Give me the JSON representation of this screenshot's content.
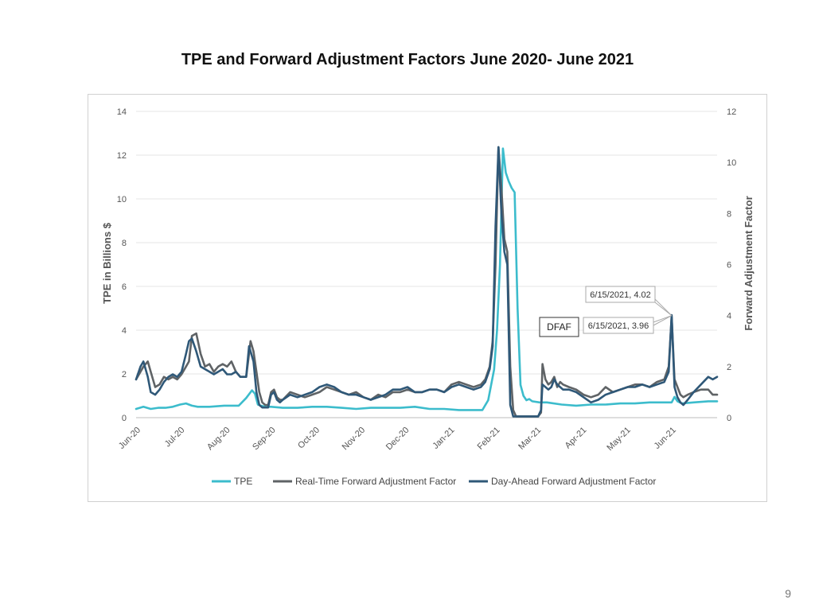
{
  "slide": {
    "title": "TPE and Forward Adjustment Factors June 2020- June 2021",
    "page_number": "9"
  },
  "chart_data": {
    "type": "line",
    "title": "",
    "xlabel": "",
    "ylabel": "TPE in Billions $",
    "y2label": "Forward Adjustment Factor",
    "ylim": [
      0,
      14
    ],
    "y2lim": [
      0,
      12
    ],
    "yticks": [
      0,
      2,
      4,
      6,
      8,
      10,
      12,
      14
    ],
    "y2ticks": [
      0,
      2,
      4,
      6,
      8,
      10,
      12
    ],
    "x_range": [
      0,
      396
    ],
    "xtick_positions": [
      0,
      30,
      61,
      92,
      122,
      153,
      183,
      214,
      245,
      273,
      304,
      334,
      365
    ],
    "xtick_labels": [
      "Jun-20",
      "Jul-20",
      "Aug-20",
      "Sep-20",
      "Oct-20",
      "Nov-20",
      "Dec-20",
      "Jan-21",
      "Feb-21",
      "Mar-21",
      "Apr-21",
      "May-21",
      "Jun-21"
    ],
    "grid": true,
    "legend_position": "bottom",
    "colors": {
      "TPE": "#3cbccc",
      "RTFAF": "#5f6366",
      "DAFAF": "#2f5878"
    },
    "series": [
      {
        "name": "TPE",
        "axis": "left",
        "x": [
          0,
          5,
          10,
          15,
          20,
          25,
          30,
          34,
          38,
          42,
          50,
          60,
          70,
          75,
          79,
          81,
          83,
          85,
          88,
          92,
          100,
          110,
          120,
          130,
          140,
          150,
          160,
          170,
          180,
          190,
          200,
          210,
          220,
          230,
          236,
          240,
          242,
          244,
          246,
          248,
          250,
          252,
          254,
          256,
          258,
          260,
          262,
          264,
          266,
          268,
          270,
          275,
          280,
          290,
          300,
          310,
          320,
          330,
          340,
          350,
          360,
          365,
          367,
          369,
          372,
          380,
          390,
          396
        ],
        "values": [
          0.4,
          0.5,
          0.4,
          0.45,
          0.45,
          0.5,
          0.6,
          0.65,
          0.55,
          0.5,
          0.5,
          0.55,
          0.55,
          0.9,
          1.25,
          1.1,
          0.6,
          0.55,
          0.5,
          0.5,
          0.45,
          0.45,
          0.5,
          0.5,
          0.45,
          0.4,
          0.45,
          0.45,
          0.45,
          0.5,
          0.4,
          0.4,
          0.35,
          0.35,
          0.35,
          0.8,
          1.5,
          2.2,
          4,
          7,
          12.3,
          11.2,
          10.8,
          10.5,
          10.3,
          5,
          1.5,
          1,
          0.8,
          0.85,
          0.75,
          0.7,
          0.7,
          0.6,
          0.55,
          0.6,
          0.6,
          0.65,
          0.65,
          0.7,
          0.7,
          0.7,
          0.95,
          0.75,
          0.65,
          0.7,
          0.75,
          0.75
        ]
      },
      {
        "name": "Real-Time Forward Adjustment Factor",
        "axis": "right",
        "x": [
          0,
          3,
          5,
          8,
          10,
          13,
          16,
          19,
          22,
          25,
          28,
          31,
          34,
          36,
          38,
          41,
          44,
          47,
          50,
          53,
          56,
          59,
          62,
          65,
          68,
          71,
          75,
          77,
          78,
          80,
          82,
          84,
          86,
          88,
          90,
          92,
          94,
          96,
          98,
          100,
          105,
          110,
          115,
          120,
          125,
          130,
          135,
          140,
          145,
          150,
          155,
          160,
          165,
          170,
          175,
          180,
          185,
          190,
          195,
          200,
          205,
          210,
          215,
          220,
          225,
          230,
          235,
          238,
          241,
          243,
          245,
          247,
          249,
          251,
          253,
          255,
          257,
          259,
          260,
          262,
          264,
          266,
          268,
          270,
          272,
          274,
          276,
          277,
          279,
          281,
          283,
          285,
          287,
          289,
          291,
          295,
          300,
          305,
          310,
          315,
          320,
          325,
          330,
          335,
          340,
          345,
          350,
          355,
          360,
          363,
          365,
          367,
          369,
          371,
          373,
          376,
          380,
          385,
          390,
          393,
          396
        ],
        "values": [
          1.5,
          1.8,
          2.0,
          2.2,
          1.8,
          1.2,
          1.3,
          1.6,
          1.5,
          1.6,
          1.5,
          1.7,
          2.0,
          2.2,
          3.2,
          3.3,
          2.5,
          2.0,
          2.1,
          1.8,
          2.0,
          2.1,
          2.0,
          2.2,
          1.8,
          1.6,
          1.6,
          2.5,
          3.0,
          2.6,
          1.8,
          1.0,
          0.6,
          0.5,
          0.5,
          1.0,
          1.1,
          0.8,
          0.7,
          0.7,
          1.0,
          0.9,
          0.8,
          0.9,
          1.0,
          1.2,
          1.1,
          1.0,
          0.9,
          1.0,
          0.8,
          0.7,
          0.9,
          0.8,
          1.0,
          1.0,
          1.1,
          1.0,
          1.0,
          1.1,
          1.1,
          1.0,
          1.3,
          1.4,
          1.3,
          1.2,
          1.3,
          1.5,
          2.0,
          3.0,
          6.0,
          10.6,
          9.0,
          7.0,
          6.5,
          2.0,
          0.3,
          0.05,
          0.05,
          0.05,
          0.05,
          0.05,
          0.05,
          0.05,
          0.05,
          0.05,
          0.2,
          2.1,
          1.5,
          1.3,
          1.4,
          1.6,
          1.2,
          1.4,
          1.3,
          1.2,
          1.1,
          0.9,
          0.8,
          0.9,
          1.2,
          1.0,
          1.1,
          1.2,
          1.3,
          1.3,
          1.2,
          1.4,
          1.5,
          2.0,
          3.96,
          1.5,
          1.2,
          0.9,
          0.8,
          0.9,
          1.0,
          1.1,
          1.1,
          0.9,
          0.9
        ]
      },
      {
        "name": "Day-Ahead Forward Adjustment Factor",
        "axis": "right",
        "x": [
          0,
          3,
          5,
          8,
          10,
          13,
          16,
          19,
          22,
          25,
          28,
          31,
          34,
          36,
          38,
          41,
          44,
          47,
          50,
          53,
          56,
          59,
          62,
          65,
          68,
          71,
          75,
          77,
          78,
          80,
          82,
          84,
          86,
          88,
          90,
          92,
          94,
          96,
          98,
          100,
          105,
          110,
          115,
          120,
          125,
          130,
          135,
          140,
          145,
          150,
          155,
          160,
          165,
          170,
          175,
          180,
          185,
          190,
          195,
          200,
          205,
          210,
          215,
          220,
          225,
          230,
          235,
          238,
          241,
          243,
          245,
          247,
          249,
          251,
          253,
          255,
          257,
          259,
          260,
          262,
          264,
          266,
          268,
          270,
          272,
          274,
          276,
          277,
          279,
          281,
          283,
          285,
          287,
          289,
          291,
          295,
          300,
          305,
          310,
          315,
          320,
          325,
          330,
          335,
          340,
          345,
          350,
          355,
          360,
          363,
          365,
          367,
          369,
          371,
          373,
          376,
          380,
          385,
          390,
          393,
          396
        ],
        "values": [
          1.5,
          2.0,
          2.2,
          1.6,
          1.0,
          0.9,
          1.1,
          1.4,
          1.6,
          1.7,
          1.6,
          1.8,
          2.5,
          3.0,
          3.1,
          2.6,
          2.0,
          1.9,
          1.8,
          1.7,
          1.8,
          1.9,
          1.7,
          1.7,
          1.8,
          1.6,
          1.6,
          2.8,
          2.6,
          2.2,
          1.0,
          0.5,
          0.4,
          0.4,
          0.4,
          0.9,
          1.0,
          0.7,
          0.6,
          0.7,
          0.9,
          0.8,
          0.9,
          1.0,
          1.2,
          1.3,
          1.2,
          1.0,
          0.9,
          0.9,
          0.8,
          0.7,
          0.8,
          0.9,
          1.1,
          1.1,
          1.2,
          1.0,
          1.0,
          1.1,
          1.1,
          1.0,
          1.2,
          1.3,
          1.2,
          1.1,
          1.2,
          1.4,
          1.9,
          2.8,
          7.5,
          10.6,
          8.0,
          6.5,
          6.0,
          0.5,
          0.05,
          0.05,
          0.05,
          0.05,
          0.05,
          0.05,
          0.05,
          0.05,
          0.05,
          0.05,
          0.3,
          1.3,
          1.2,
          1.1,
          1.2,
          1.5,
          1.3,
          1.2,
          1.1,
          1.1,
          1.0,
          0.8,
          0.6,
          0.7,
          0.9,
          1.0,
          1.1,
          1.2,
          1.2,
          1.3,
          1.2,
          1.3,
          1.4,
          1.8,
          4.02,
          1.2,
          0.8,
          0.6,
          0.5,
          0.7,
          1.0,
          1.3,
          1.6,
          1.5,
          1.6
        ]
      }
    ],
    "annotations": [
      {
        "text": "6/15/2021, 4.02",
        "x": 365,
        "y": 4.02
      },
      {
        "text": "6/15/2021, 3.96",
        "x": 365,
        "y": 3.96
      },
      {
        "text": "DFAF"
      }
    ]
  }
}
